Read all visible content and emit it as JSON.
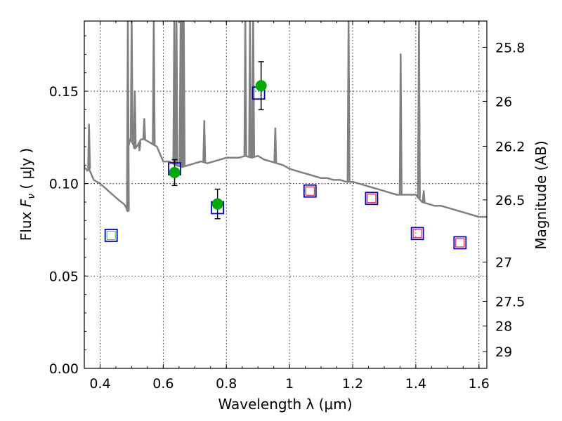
{
  "chart_data": {
    "type": "scatter",
    "xlabel": "Wavelength  λ (μm)",
    "ylabel": {
      "prefix": "Flux  ",
      "symbol": "F",
      "subscript": "ν",
      "unit_open": "  ( μ",
      "unit_rest": "Jy )"
    },
    "y2label": "Magnitude (AB)",
    "xlim": [
      0.35,
      1.625
    ],
    "ylim": [
      0.0,
      0.188
    ],
    "grid": true,
    "x_ticks": [
      0.4,
      0.6,
      0.8,
      1.0,
      1.2,
      1.4,
      1.6
    ],
    "x_tick_labels": [
      "0.4",
      "0.6",
      "0.8",
      "1",
      "1.2",
      "1.4",
      "1.6"
    ],
    "y_ticks": [
      0.0,
      0.05,
      0.1,
      0.15
    ],
    "y_tick_labels": [
      "0.00",
      "0.05",
      "0.10",
      "0.15"
    ],
    "y2_tick_labels": [
      "25.8",
      "26",
      "26.2",
      "26.5",
      "27",
      "27.5",
      "28",
      "29"
    ],
    "y2_tick_values": [
      25.8,
      26.0,
      26.2,
      26.5,
      27.0,
      27.5,
      28.0,
      29.0
    ],
    "colors": {
      "model": "#808080",
      "observed": "#00aa00",
      "model_band": "#0000cc",
      "inner_square_green": "#33cc33",
      "inner_square_red": "#dd0000"
    },
    "series": [
      {
        "kind": "model-spectrum",
        "x": [
          0.35,
          0.36,
          0.365,
          0.37,
          0.375,
          0.38,
          0.4,
          0.42,
          0.44,
          0.46,
          0.475,
          0.48,
          0.485,
          0.488,
          0.49,
          0.495,
          0.5,
          0.505,
          0.51,
          0.52,
          0.53,
          0.54,
          0.55,
          0.56,
          0.57,
          0.58,
          0.59,
          0.6,
          0.62,
          0.64,
          0.66,
          0.68,
          0.7,
          0.72,
          0.74,
          0.76,
          0.78,
          0.8,
          0.82,
          0.84,
          0.86,
          0.88,
          0.9,
          0.92,
          0.94,
          0.96,
          0.98,
          1.0,
          1.02,
          1.04,
          1.06,
          1.08,
          1.1,
          1.12,
          1.14,
          1.16,
          1.18,
          1.2,
          1.22,
          1.24,
          1.26,
          1.28,
          1.3,
          1.32,
          1.34,
          1.36,
          1.38,
          1.4,
          1.42,
          1.44,
          1.46,
          1.48,
          1.5,
          1.52,
          1.54,
          1.56,
          1.58,
          1.6,
          1.625
        ],
        "y": [
          0.109,
          0.107,
          0.108,
          0.106,
          0.104,
          0.102,
          0.1,
          0.097,
          0.094,
          0.091,
          0.089,
          0.088,
          0.086,
          0.085,
          0.12,
          0.124,
          0.123,
          0.121,
          0.119,
          0.121,
          0.124,
          0.124,
          0.123,
          0.122,
          0.121,
          0.12,
          0.116,
          0.112,
          0.112,
          0.11,
          0.109,
          0.11,
          0.111,
          0.112,
          0.111,
          0.112,
          0.113,
          0.114,
          0.114,
          0.114,
          0.115,
          0.114,
          0.115,
          0.113,
          0.112,
          0.111,
          0.11,
          0.108,
          0.107,
          0.106,
          0.105,
          0.104,
          0.103,
          0.103,
          0.102,
          0.102,
          0.101,
          0.101,
          0.1,
          0.099,
          0.098,
          0.097,
          0.096,
          0.095,
          0.094,
          0.094,
          0.094,
          0.094,
          0.09,
          0.089,
          0.088,
          0.088,
          0.087,
          0.086,
          0.085,
          0.084,
          0.083,
          0.082,
          0.082
        ]
      },
      {
        "kind": "emission-lines",
        "x": [
          0.365,
          0.488,
          0.5,
          0.51,
          0.525,
          0.54,
          0.57,
          0.635,
          0.642,
          0.655,
          0.66,
          0.665,
          0.73,
          0.86,
          0.875,
          0.885,
          0.955,
          1.187,
          1.352,
          1.41,
          1.425
        ],
        "y": [
          0.132,
          0.19,
          0.19,
          0.15,
          0.118,
          0.135,
          0.19,
          0.19,
          0.19,
          0.19,
          0.19,
          0.19,
          0.134,
          0.19,
          0.19,
          0.19,
          0.13,
          0.19,
          0.17,
          0.19,
          0.096
        ]
      },
      {
        "kind": "observed",
        "x": [
          0.636,
          0.772,
          0.91
        ],
        "y": [
          0.106,
          0.089,
          0.153
        ],
        "yerr": [
          0.007,
          0.008,
          0.013
        ]
      },
      {
        "kind": "model-band",
        "x": [
          0.435,
          0.636,
          0.772,
          0.902,
          1.065,
          1.26,
          1.405,
          1.54
        ],
        "y": [
          0.072,
          0.108,
          0.087,
          0.149,
          0.096,
          0.092,
          0.073,
          0.068
        ],
        "inner": [
          "green",
          "none",
          "none",
          "none",
          "red",
          "red",
          "red",
          "red"
        ]
      }
    ]
  }
}
